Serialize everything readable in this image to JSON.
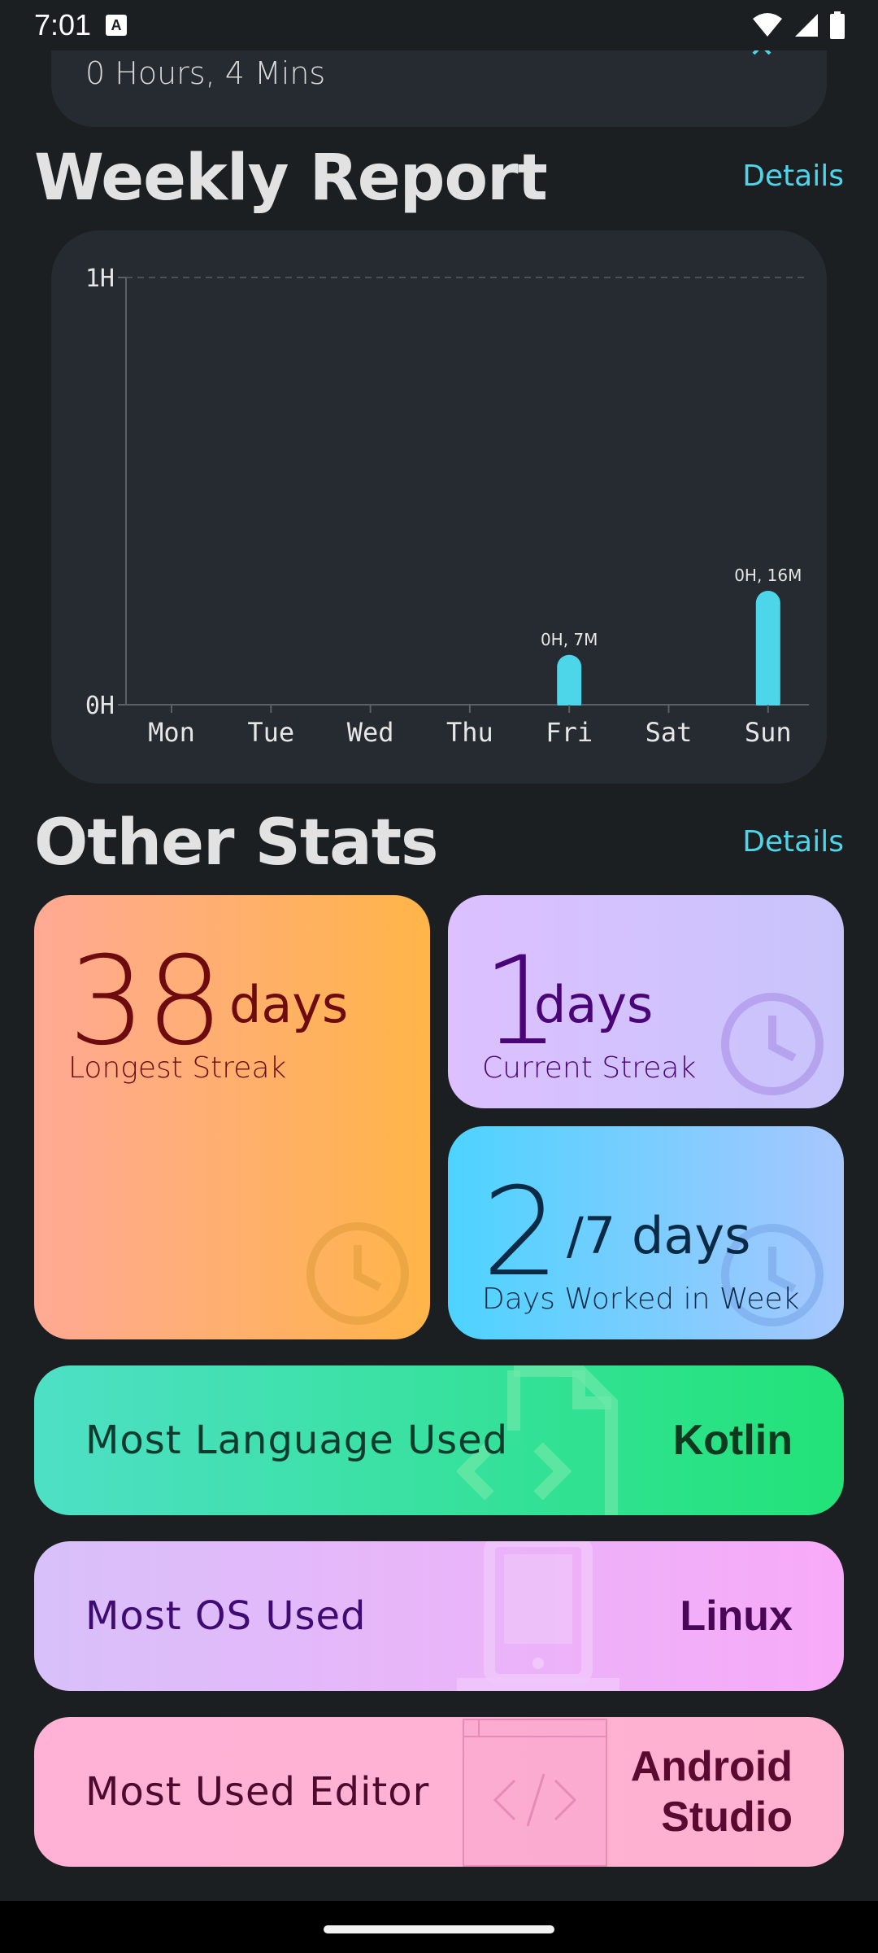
{
  "status_bar": {
    "time": "7:01"
  },
  "top_card": {
    "duration": "0 Hours, 4 Mins"
  },
  "weekly_report": {
    "title": "Weekly Report",
    "details_label": "Details"
  },
  "chart_data": {
    "type": "bar",
    "categories": [
      "Mon",
      "Tue",
      "Wed",
      "Thu",
      "Fri",
      "Sat",
      "Sun"
    ],
    "values_minutes": [
      0,
      0,
      0,
      0,
      7,
      0,
      16
    ],
    "data_labels": [
      "",
      "",
      "",
      "",
      "0H, 7M",
      "",
      "0H, 16M"
    ],
    "y_ticks": [
      "0H",
      "1H"
    ],
    "ylim_minutes": [
      0,
      60
    ],
    "grid": "dashed line at 1H",
    "bar_color": "#4dd6ea"
  },
  "other_stats": {
    "title": "Other Stats",
    "details_label": "Details",
    "longest_streak": {
      "value": "38",
      "unit": "days",
      "caption": "Longest Streak"
    },
    "current_streak": {
      "value": "1",
      "unit": "days",
      "caption": "Current Streak"
    },
    "days_worked": {
      "value": "2",
      "unit": "/7 days",
      "caption": "Days Worked in Week"
    }
  },
  "most_language": {
    "label": "Most Language Used",
    "value": "Kotlin"
  },
  "most_os": {
    "label": "Most OS Used",
    "value": "Linux"
  },
  "most_editor": {
    "label": "Most Used Editor",
    "value_line1": "Android",
    "value_line2": "Studio"
  }
}
